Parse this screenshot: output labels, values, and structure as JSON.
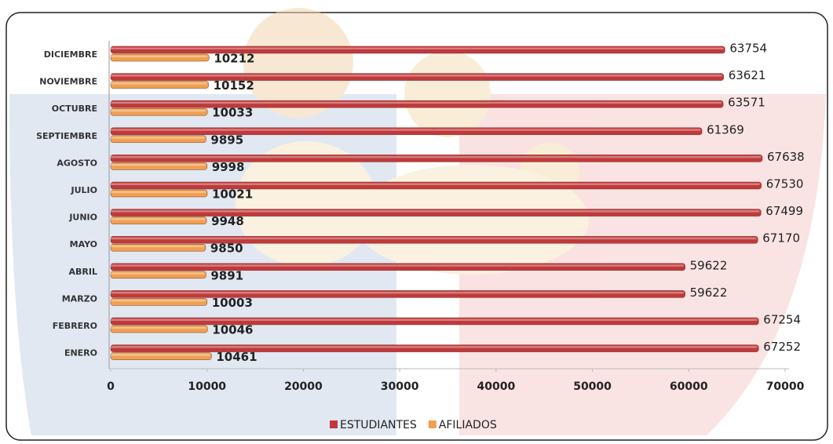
{
  "chart_data": {
    "type": "bar",
    "orientation": "horizontal",
    "categories": [
      "DICIEMBRE",
      "NOVIEMBRE",
      "OCTUBRE",
      "SEPTIEMBRE",
      "AGOSTO",
      "JULIO",
      "JUNIO",
      "MAYO",
      "ABRIL",
      "MARZO",
      "FEBRERO",
      "ENERO"
    ],
    "series": [
      {
        "name": "ESTUDIANTES",
        "color": "#c0393b",
        "values": [
          63754,
          63621,
          63571,
          61369,
          67638,
          67530,
          67499,
          67170,
          59622,
          59622,
          67254,
          67252
        ]
      },
      {
        "name": "AFILIADOS",
        "color": "#f0a050",
        "values": [
          10212,
          10152,
          10033,
          9895,
          9998,
          10021,
          9948,
          9850,
          9891,
          10003,
          10046,
          10461
        ]
      }
    ],
    "xlim": [
      0,
      70000
    ],
    "xticks": [
      0,
      10000,
      20000,
      30000,
      40000,
      50000,
      60000,
      70000
    ],
    "legend": "bottom"
  }
}
